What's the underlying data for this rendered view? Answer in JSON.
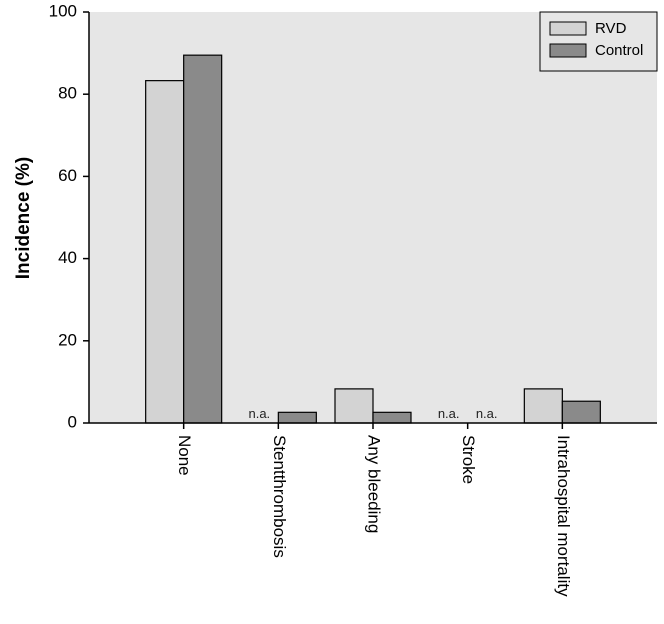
{
  "chart_data": {
    "type": "bar",
    "categories": [
      "None",
      "Stentthrombosis",
      "Any bleeding",
      "Stroke",
      "Intrahospital mortality"
    ],
    "series": [
      {
        "name": "RVD",
        "values": [
          83.3,
          null,
          8.3,
          null,
          8.3
        ],
        "color": "#d3d3d3"
      },
      {
        "name": "Control",
        "values": [
          89.5,
          2.6,
          2.6,
          null,
          5.3
        ],
        "color": "#8a8a8a"
      }
    ],
    "missing_label": "n.a.",
    "title": "",
    "xlabel": "",
    "ylabel": "Incidence (%)",
    "ylim": [
      0,
      100
    ],
    "yticks": [
      0,
      20,
      40,
      60,
      80,
      100
    ],
    "legend_position": "top-right",
    "grid": false,
    "plot_background": "#e6e6e6"
  }
}
